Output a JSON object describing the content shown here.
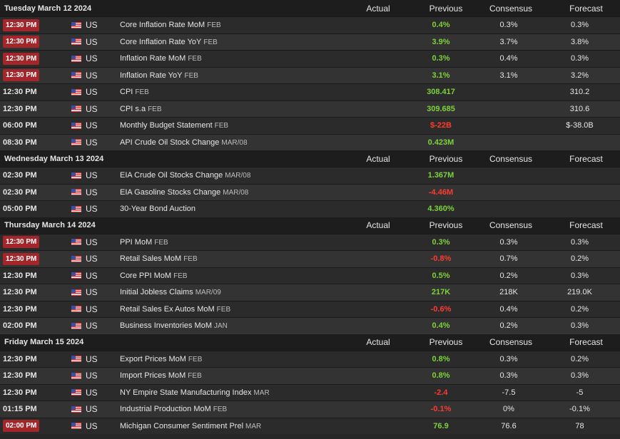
{
  "columns": {
    "actual": "Actual",
    "previous": "Previous",
    "consensus": "Consensus",
    "forecast": "Forecast"
  },
  "colors": {
    "positive": "#7dd23a",
    "negative": "#ff3b30",
    "badge": "#a3262b"
  },
  "days": [
    {
      "date": "Tuesday March 12 2024",
      "events": [
        {
          "time": "12:30 PM",
          "highlight": true,
          "country": "US",
          "flag": "us-flag-icon",
          "event": "Core Inflation Rate MoM",
          "period": "FEB",
          "actual": "",
          "previous": "0.4%",
          "prev_color": "pos",
          "consensus": "0.3%",
          "forecast": "0.3%"
        },
        {
          "time": "12:30 PM",
          "highlight": true,
          "country": "US",
          "flag": "us-flag-icon",
          "event": "Core Inflation Rate YoY",
          "period": "FEB",
          "actual": "",
          "previous": "3.9%",
          "prev_color": "pos",
          "consensus": "3.7%",
          "forecast": "3.8%"
        },
        {
          "time": "12:30 PM",
          "highlight": true,
          "country": "US",
          "flag": "us-flag-icon",
          "event": "Inflation Rate MoM",
          "period": "FEB",
          "actual": "",
          "previous": "0.3%",
          "prev_color": "pos",
          "consensus": "0.4%",
          "forecast": "0.3%"
        },
        {
          "time": "12:30 PM",
          "highlight": true,
          "country": "US",
          "flag": "us-flag-icon",
          "event": "Inflation Rate YoY",
          "period": "FEB",
          "actual": "",
          "previous": "3.1%",
          "prev_color": "pos",
          "consensus": "3.1%",
          "forecast": "3.2%"
        },
        {
          "time": "12:30 PM",
          "highlight": false,
          "country": "US",
          "flag": "us-flag-icon",
          "event": "CPI",
          "period": "FEB",
          "actual": "",
          "previous": "308.417",
          "prev_color": "pos",
          "consensus": "",
          "forecast": "310.2"
        },
        {
          "time": "12:30 PM",
          "highlight": false,
          "country": "US",
          "flag": "us-flag-icon",
          "event": "CPI s.a",
          "period": "FEB",
          "actual": "",
          "previous": "309.685",
          "prev_color": "pos",
          "consensus": "",
          "forecast": "310.6"
        },
        {
          "time": "06:00 PM",
          "highlight": false,
          "country": "US",
          "flag": "us-flag-icon",
          "event": "Monthly Budget Statement",
          "period": "FEB",
          "actual": "",
          "previous": "$-22B",
          "prev_color": "neg",
          "consensus": "",
          "forecast": "$-38.0B"
        },
        {
          "time": "08:30 PM",
          "highlight": false,
          "country": "US",
          "flag": "us-flag-icon",
          "event": "API Crude Oil Stock Change",
          "period": "MAR/08",
          "actual": "",
          "previous": "0.423M",
          "prev_color": "pos",
          "consensus": "",
          "forecast": ""
        }
      ]
    },
    {
      "date": "Wednesday March 13 2024",
      "events": [
        {
          "time": "02:30 PM",
          "highlight": false,
          "country": "US",
          "flag": "us-flag-icon",
          "event": "EIA Crude Oil Stocks Change",
          "period": "MAR/08",
          "actual": "",
          "previous": "1.367M",
          "prev_color": "pos",
          "consensus": "",
          "forecast": ""
        },
        {
          "time": "02:30 PM",
          "highlight": false,
          "country": "US",
          "flag": "us-flag-icon",
          "event": "EIA Gasoline Stocks Change",
          "period": "MAR/08",
          "actual": "",
          "previous": "-4.46M",
          "prev_color": "neg",
          "consensus": "",
          "forecast": ""
        },
        {
          "time": "05:00 PM",
          "highlight": false,
          "country": "US",
          "flag": "us-flag-icon",
          "event": "30-Year Bond Auction",
          "period": "",
          "actual": "",
          "previous": "4.360%",
          "prev_color": "pos",
          "consensus": "",
          "forecast": ""
        }
      ]
    },
    {
      "date": "Thursday March 14 2024",
      "events": [
        {
          "time": "12:30 PM",
          "highlight": true,
          "country": "US",
          "flag": "us-flag-icon",
          "event": "PPI MoM",
          "period": "FEB",
          "actual": "",
          "previous": "0.3%",
          "prev_color": "pos",
          "consensus": "0.3%",
          "forecast": "0.3%"
        },
        {
          "time": "12:30 PM",
          "highlight": true,
          "country": "US",
          "flag": "us-flag-icon",
          "event": "Retail Sales MoM",
          "period": "FEB",
          "actual": "",
          "previous": "-0.8%",
          "prev_color": "neg",
          "consensus": "0.7%",
          "forecast": "0.2%"
        },
        {
          "time": "12:30 PM",
          "highlight": false,
          "country": "US",
          "flag": "us-flag-icon",
          "event": "Core PPI MoM",
          "period": "FEB",
          "actual": "",
          "previous": "0.5%",
          "prev_color": "pos",
          "consensus": "0.2%",
          "forecast": "0.3%"
        },
        {
          "time": "12:30 PM",
          "highlight": false,
          "country": "US",
          "flag": "us-flag-icon",
          "event": "Initial Jobless Claims",
          "period": "MAR/09",
          "actual": "",
          "previous": "217K",
          "prev_color": "pos",
          "consensus": "218K",
          "forecast": "219.0K"
        },
        {
          "time": "12:30 PM",
          "highlight": false,
          "country": "US",
          "flag": "us-flag-icon",
          "event": "Retail Sales Ex Autos MoM",
          "period": "FEB",
          "actual": "",
          "previous": "-0.6%",
          "prev_color": "neg",
          "consensus": "0.4%",
          "forecast": "0.2%"
        },
        {
          "time": "02:00 PM",
          "highlight": false,
          "country": "US",
          "flag": "us-flag-icon",
          "event": "Business Inventories MoM",
          "period": "JAN",
          "actual": "",
          "previous": "0.4%",
          "prev_color": "pos",
          "consensus": "0.2%",
          "forecast": "0.3%"
        }
      ]
    },
    {
      "date": "Friday March 15 2024",
      "events": [
        {
          "time": "12:30 PM",
          "highlight": false,
          "country": "US",
          "flag": "us-flag-icon",
          "event": "Export Prices MoM",
          "period": "FEB",
          "actual": "",
          "previous": "0.8%",
          "prev_color": "pos",
          "consensus": "0.3%",
          "forecast": "0.2%"
        },
        {
          "time": "12:30 PM",
          "highlight": false,
          "country": "US",
          "flag": "us-flag-icon",
          "event": "Import Prices MoM",
          "period": "FEB",
          "actual": "",
          "previous": "0.8%",
          "prev_color": "pos",
          "consensus": "0.3%",
          "forecast": "0.3%"
        },
        {
          "time": "12:30 PM",
          "highlight": false,
          "country": "US",
          "flag": "us-flag-icon",
          "event": "NY Empire State Manufacturing Index",
          "period": "MAR",
          "actual": "",
          "previous": "-2.4",
          "prev_color": "neg",
          "consensus": "-7.5",
          "forecast": "-5"
        },
        {
          "time": "01:15 PM",
          "highlight": false,
          "country": "US",
          "flag": "us-flag-icon",
          "event": "Industrial Production MoM",
          "period": "FEB",
          "actual": "",
          "previous": "-0.1%",
          "prev_color": "neg",
          "consensus": "0%",
          "forecast": "-0.1%"
        },
        {
          "time": "02:00 PM",
          "highlight": true,
          "country": "US",
          "flag": "us-flag-icon",
          "event": "Michigan Consumer Sentiment Prel",
          "period": "MAR",
          "actual": "",
          "previous": "76.9",
          "prev_color": "pos",
          "consensus": "76.6",
          "forecast": "78"
        }
      ]
    }
  ]
}
